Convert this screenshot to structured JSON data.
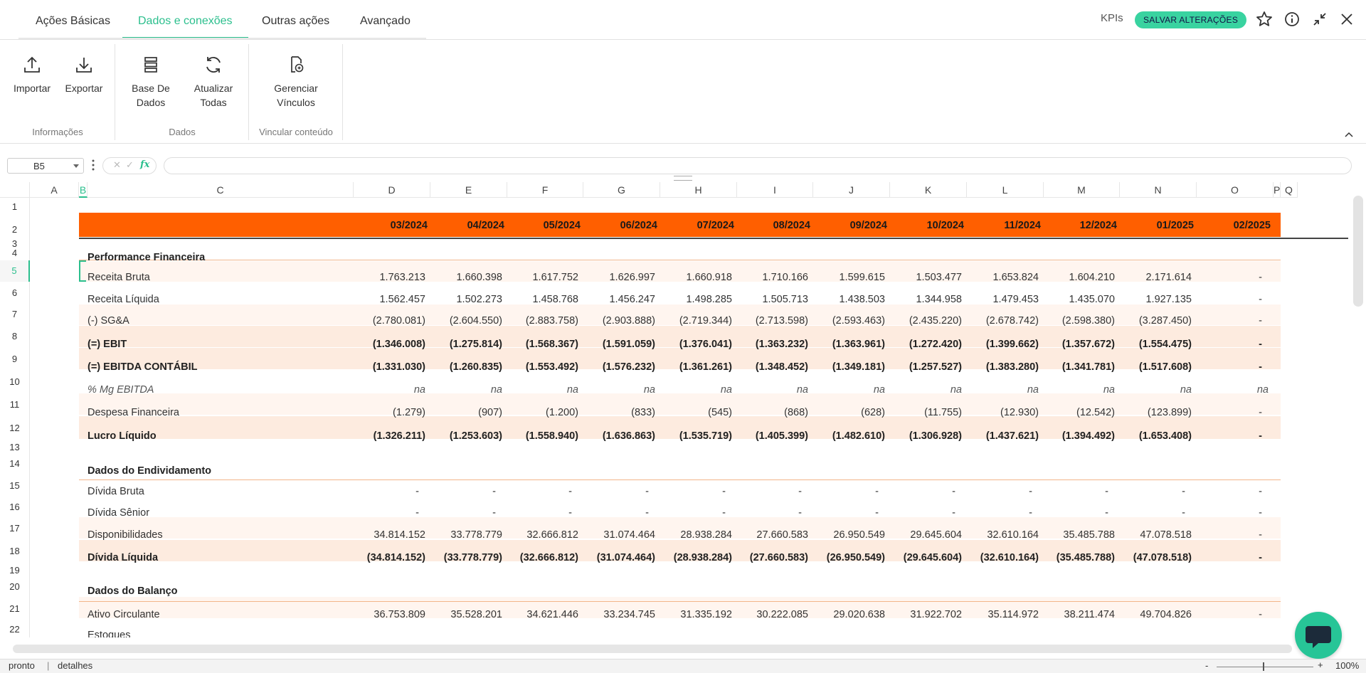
{
  "tabs": [
    {
      "label": "Ações Básicas"
    },
    {
      "label": "Dados e conexões"
    },
    {
      "label": "Outras ações"
    },
    {
      "label": "Avançado"
    }
  ],
  "top_actions": {
    "kpis": "KPIs",
    "save": "SALVAR ALTERAÇÕES"
  },
  "ribbon": {
    "import": "Importar",
    "export": "Exportar",
    "group_info": "Informações",
    "database_l1": "Base De",
    "database_l2": "Dados",
    "refresh_l1": "Atualizar",
    "refresh_l2": "Todas",
    "group_data": "Dados",
    "manage_l1": "Gerenciar",
    "manage_l2": "Vínculos",
    "group_link": "Vincular conteúdo"
  },
  "formula_bar": {
    "cell_ref": "B5",
    "formula": ""
  },
  "columns": [
    "A",
    "B",
    "C",
    "D",
    "E",
    "F",
    "G",
    "H",
    "I",
    "J",
    "K",
    "L",
    "M",
    "N",
    "O",
    "P",
    "Q"
  ],
  "rows": [
    "1",
    "2",
    "3",
    "4",
    "5",
    "6",
    "7",
    "8",
    "9",
    "10",
    "11",
    "12",
    "13",
    "14",
    "15",
    "16",
    "17",
    "18",
    "19",
    "20",
    "21",
    "22"
  ],
  "periods": [
    "03/2024",
    "04/2024",
    "05/2024",
    "06/2024",
    "07/2024",
    "08/2024",
    "09/2024",
    "10/2024",
    "11/2024",
    "12/2024",
    "01/2025",
    "02/2025"
  ],
  "sections": {
    "performance": "Performance Financeira",
    "debt": "Dados do Endividamento",
    "balance": "Dados do Balanço"
  },
  "table": {
    "receita_bruta": {
      "label": "Receita Bruta",
      "values": [
        "1.763.213",
        "1.660.398",
        "1.617.752",
        "1.626.997",
        "1.660.918",
        "1.710.166",
        "1.599.615",
        "1.503.477",
        "1.653.824",
        "1.604.210",
        "2.171.614",
        "-"
      ]
    },
    "receita_liquida": {
      "label": "Receita Líquida",
      "values": [
        "1.562.457",
        "1.502.273",
        "1.458.768",
        "1.456.247",
        "1.498.285",
        "1.505.713",
        "1.438.503",
        "1.344.958",
        "1.479.453",
        "1.435.070",
        "1.927.135",
        "-"
      ]
    },
    "sga": {
      "label": "(-) SG&A",
      "values": [
        "(2.780.081)",
        "(2.604.550)",
        "(2.883.758)",
        "(2.903.888)",
        "(2.719.344)",
        "(2.713.598)",
        "(2.593.463)",
        "(2.435.220)",
        "(2.678.742)",
        "(2.598.380)",
        "(3.287.450)",
        "-"
      ]
    },
    "ebit": {
      "label": "(=) EBIT",
      "values": [
        "(1.346.008)",
        "(1.275.814)",
        "(1.568.367)",
        "(1.591.059)",
        "(1.376.041)",
        "(1.363.232)",
        "(1.363.961)",
        "(1.272.420)",
        "(1.399.662)",
        "(1.357.672)",
        "(1.554.475)",
        "-"
      ]
    },
    "ebitda": {
      "label": "(=) EBITDA CONTÁBIL",
      "values": [
        "(1.331.030)",
        "(1.260.835)",
        "(1.553.492)",
        "(1.576.232)",
        "(1.361.261)",
        "(1.348.452)",
        "(1.349.181)",
        "(1.257.527)",
        "(1.383.280)",
        "(1.341.781)",
        "(1.517.608)",
        "-"
      ]
    },
    "mg_ebitda": {
      "label": "% Mg EBITDA",
      "values": [
        "na",
        "na",
        "na",
        "na",
        "na",
        "na",
        "na",
        "na",
        "na",
        "na",
        "na",
        "na"
      ]
    },
    "desp_fin": {
      "label": "Despesa Financeira",
      "values": [
        "(1.279)",
        "(907)",
        "(1.200)",
        "(833)",
        "(545)",
        "(868)",
        "(628)",
        "(11.755)",
        "(12.930)",
        "(12.542)",
        "(123.899)",
        "-"
      ]
    },
    "lucro": {
      "label": "Lucro Líquido",
      "values": [
        "(1.326.211)",
        "(1.253.603)",
        "(1.558.940)",
        "(1.636.863)",
        "(1.535.719)",
        "(1.405.399)",
        "(1.482.610)",
        "(1.306.928)",
        "(1.437.621)",
        "(1.394.492)",
        "(1.653.408)",
        "-"
      ]
    },
    "div_bruta": {
      "label": "Dívida Bruta",
      "values": [
        "-",
        "-",
        "-",
        "-",
        "-",
        "-",
        "-",
        "-",
        "-",
        "-",
        "-",
        "-"
      ]
    },
    "div_senior": {
      "label": "Dívida Sênior",
      "values": [
        "-",
        "-",
        "-",
        "-",
        "-",
        "-",
        "-",
        "-",
        "-",
        "-",
        "-",
        "-"
      ]
    },
    "disponib": {
      "label": "Disponibilidades",
      "values": [
        "34.814.152",
        "33.778.779",
        "32.666.812",
        "31.074.464",
        "28.938.284",
        "27.660.583",
        "26.950.549",
        "29.645.604",
        "32.610.164",
        "35.485.788",
        "47.078.518",
        "-"
      ]
    },
    "div_liq": {
      "label": "Dívida Líquida",
      "values": [
        "(34.814.152)",
        "(33.778.779)",
        "(32.666.812)",
        "(31.074.464)",
        "(28.938.284)",
        "(27.660.583)",
        "(26.950.549)",
        "(29.645.604)",
        "(32.610.164)",
        "(35.485.788)",
        "(47.078.518)",
        "-"
      ]
    },
    "ativo_circ": {
      "label": "Ativo Circulante",
      "values": [
        "36.753.809",
        "35.528.201",
        "34.621.446",
        "33.234.745",
        "31.335.192",
        "30.222.085",
        "29.020.638",
        "31.922.702",
        "35.114.972",
        "38.211.474",
        "49.704.826",
        "-"
      ]
    },
    "estoques": {
      "label": "Estoques"
    }
  },
  "status": {
    "ready": "pronto",
    "separator": "|",
    "details": "detalhes",
    "zoom_minus": "-",
    "zoom_plus": "+",
    "zoom": "100%"
  },
  "colors": {
    "accent": "#2bbf8d",
    "header_orange": "#ff5f00",
    "row_tint": "#fff5ef",
    "row_tint_strong": "#fdebdf"
  }
}
